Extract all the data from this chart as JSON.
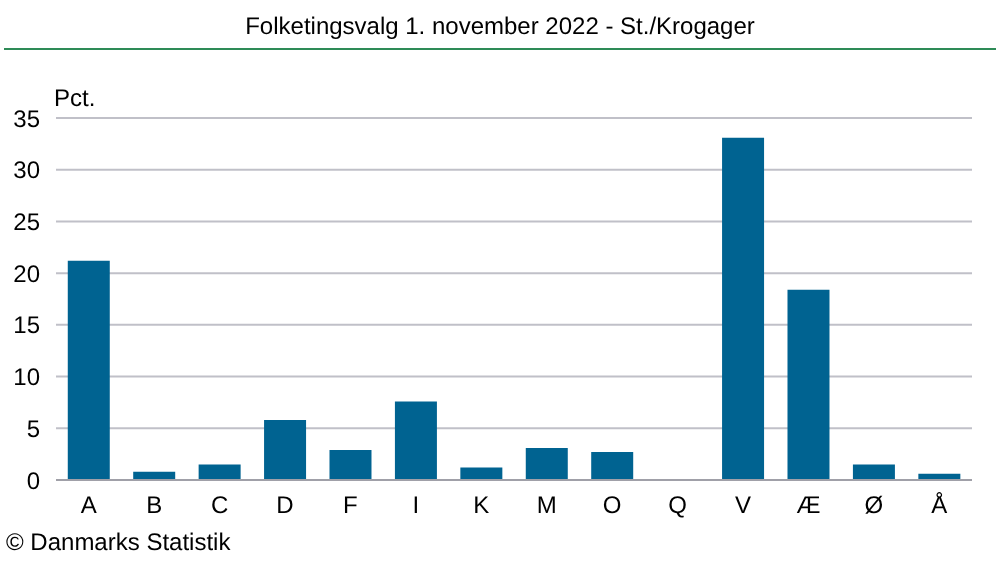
{
  "chart_data": {
    "type": "bar",
    "title": "Folketingsvalg 1. november 2022 - St./Krogager",
    "ylabel": "Pct.",
    "annotations": [
      "© Danmarks Statistik"
    ],
    "categories": [
      "A",
      "B",
      "C",
      "D",
      "F",
      "I",
      "K",
      "M",
      "O",
      "Q",
      "V",
      "Æ",
      "Ø",
      "Å"
    ],
    "values": [
      21.2,
      0.8,
      1.5,
      5.8,
      2.9,
      7.6,
      1.2,
      3.1,
      2.7,
      0,
      33.1,
      18.4,
      1.5,
      0.6
    ],
    "color": "#006391",
    "ylim": [
      0,
      35
    ],
    "yticks": [
      0,
      5,
      10,
      15,
      20,
      25,
      30,
      35
    ],
    "grid": "y",
    "legend": false
  }
}
